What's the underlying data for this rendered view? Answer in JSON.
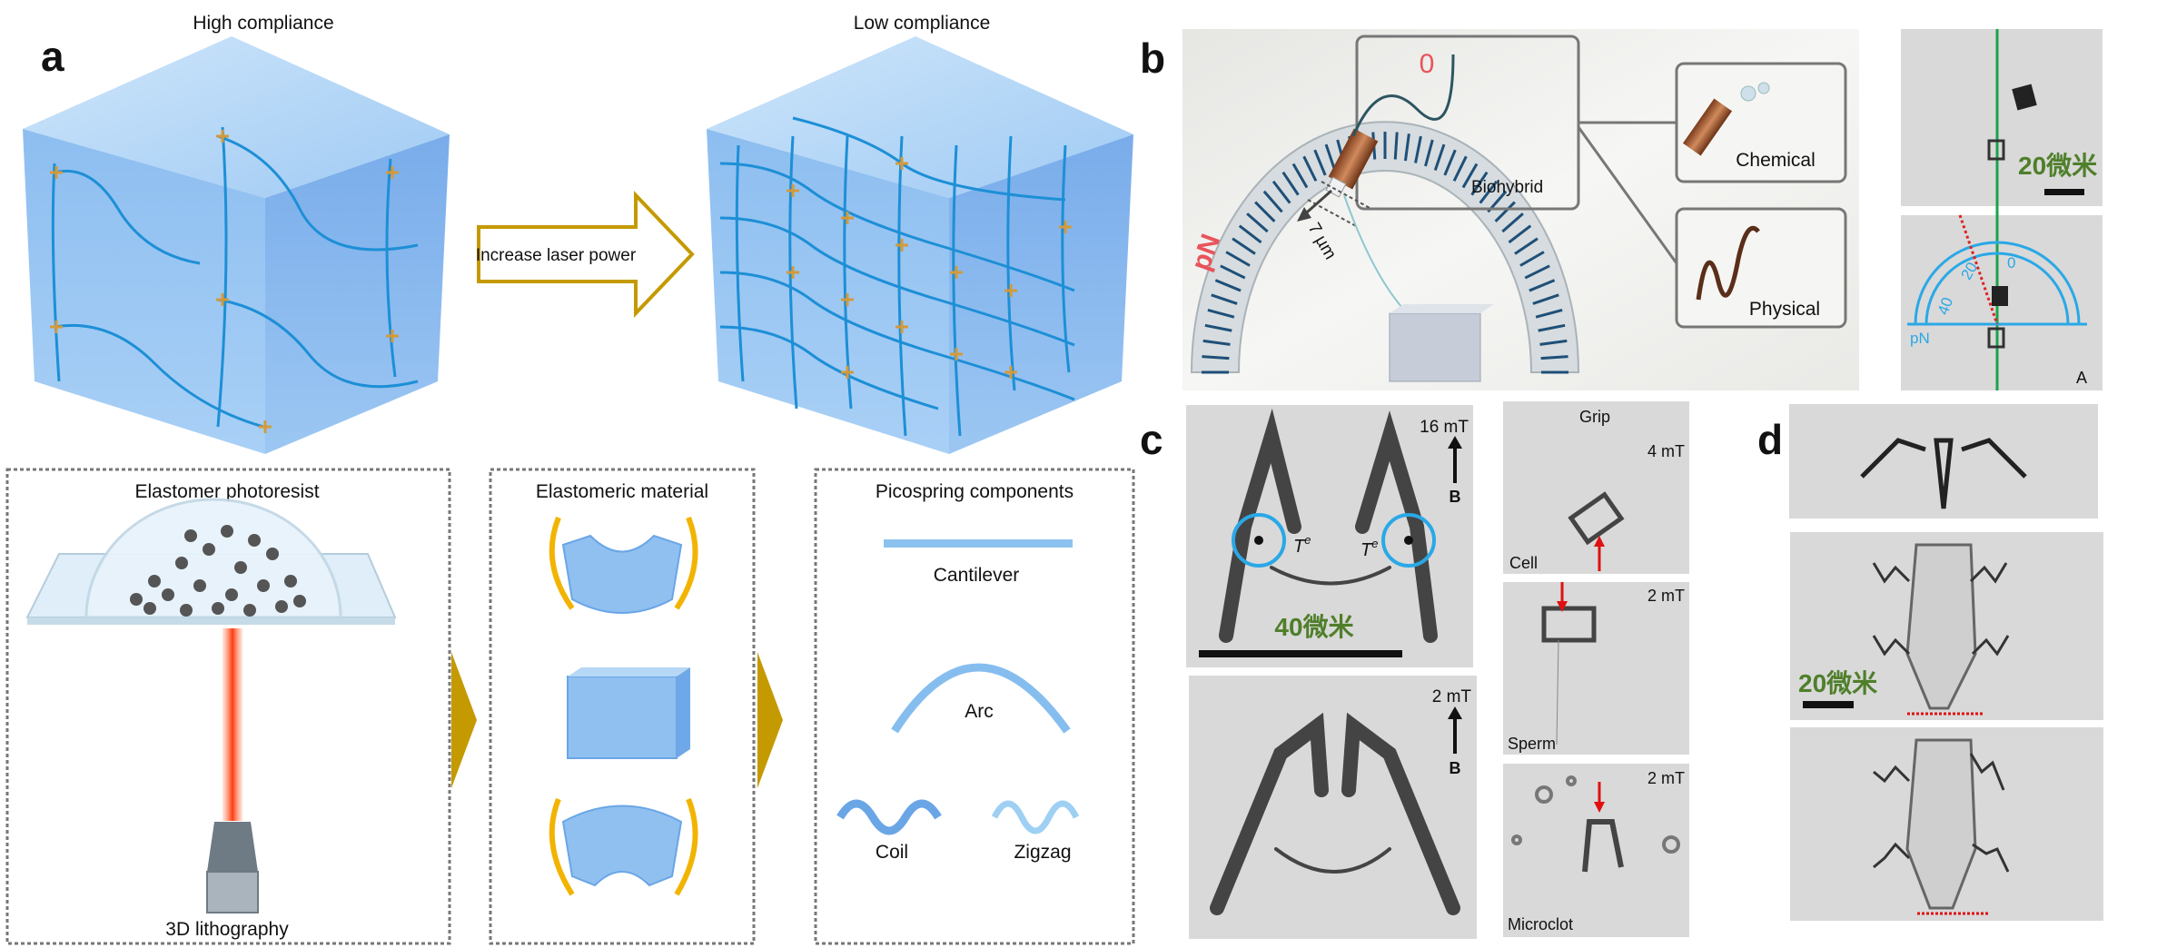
{
  "panel_a": {
    "label": "a",
    "high_title": "High compliance",
    "low_title": "Low compliance",
    "arrow_text": "Increase laser power",
    "box1_title": "Elastomer photoresist",
    "box1_caption": "3D lithography",
    "box2_title": "Elastomeric material",
    "box3_title": "Picospring components",
    "components": [
      "Cantilever",
      "Arc",
      "Coil",
      "Zigzag"
    ],
    "colors": {
      "gel": "#7fb6ec",
      "arrow": "#c49a00",
      "laser": "#ff5a2a"
    }
  },
  "panel_b": {
    "label": "b",
    "scale_unit": "pN",
    "scale_zero": "0",
    "distance": "7 µm",
    "biohybrid": "Biohybrid",
    "chemical": "Chemical",
    "physical": "Physical",
    "scale_text": "20微米",
    "protractor": {
      "ticks": [
        "0",
        "20",
        "40"
      ],
      "unit": "pN"
    },
    "corner_label": "A"
  },
  "panel_c": {
    "label": "c",
    "top": {
      "field": "16 mT",
      "field_dir": "B",
      "torque_left": "T",
      "torque_right": "T",
      "torque_sup": "e",
      "scale_text": "40微米"
    },
    "bottom": {
      "field": "2 mT",
      "field_dir": "B"
    },
    "grip": {
      "title": "Grip",
      "field": "4 mT",
      "caption": "Cell"
    },
    "sperm": {
      "field": "2 mT",
      "caption": "Sperm"
    },
    "microclot": {
      "field": "2 mT",
      "caption": "Microclot"
    }
  },
  "panel_d": {
    "label": "d",
    "scale_text": "20微米"
  }
}
